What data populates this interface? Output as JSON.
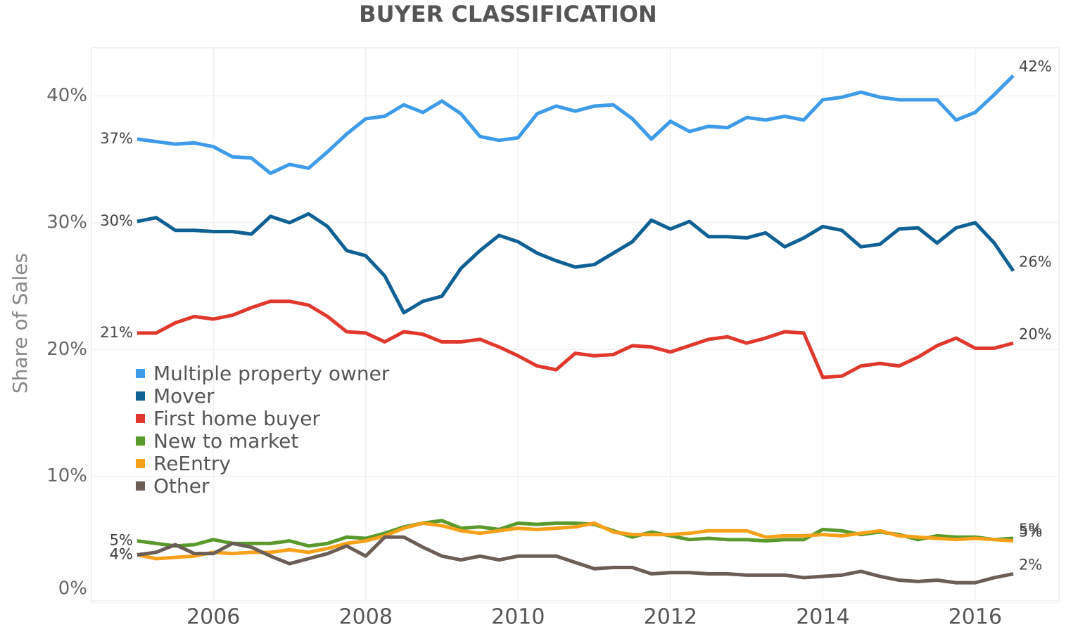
{
  "chart_data": {
    "type": "line",
    "title": "BUYER CLASSIFICATION",
    "y_label": "Share of Sales",
    "x": [
      2005,
      2005.25,
      2005.5,
      2005.75,
      2006,
      2006.25,
      2006.5,
      2006.75,
      2007,
      2007.25,
      2007.5,
      2007.75,
      2008,
      2008.25,
      2008.5,
      2008.75,
      2009,
      2009.25,
      2009.5,
      2009.75,
      2010,
      2010.25,
      2010.5,
      2010.75,
      2011,
      2011.25,
      2011.5,
      2011.75,
      2012,
      2012.25,
      2012.5,
      2012.75,
      2013,
      2013.25,
      2013.5,
      2013.75,
      2014,
      2014.25,
      2014.5,
      2014.75,
      2015,
      2015.25,
      2015.5,
      2015.75,
      2016,
      2016.25,
      2016.5
    ],
    "xlim": [
      2004.4,
      2017.1
    ],
    "xticks": [
      2006,
      2008,
      2010,
      2012,
      2014,
      2016
    ],
    "ylim": [
      0,
      43.8
    ],
    "yticks": [
      {
        "value": 0,
        "label": "0%"
      },
      {
        "value": 10,
        "label": "10%"
      },
      {
        "value": 20,
        "label": "20%"
      },
      {
        "value": 30,
        "label": "30%"
      },
      {
        "value": 40,
        "label": "40%"
      }
    ],
    "grid": true,
    "legend": "lower left",
    "series": [
      {
        "name": "Multiple property owner",
        "color": "#3d9be9",
        "values": [
          36.6,
          36.4,
          36.2,
          36.3,
          36.0,
          35.2,
          35.1,
          33.9,
          34.6,
          34.3,
          35.6,
          37.0,
          38.2,
          38.4,
          39.3,
          38.7,
          39.6,
          38.6,
          36.8,
          36.5,
          36.7,
          38.6,
          39.2,
          38.8,
          39.2,
          39.3,
          38.2,
          36.6,
          38.0,
          37.2,
          37.6,
          37.5,
          38.3,
          38.1,
          38.4,
          38.1,
          39.7,
          39.9,
          40.3,
          39.9,
          39.7,
          39.7,
          39.7,
          38.1,
          38.7,
          40.1,
          41.6
        ],
        "value_labels": [
          "37%",
          null,
          null,
          null,
          null,
          null,
          null,
          null,
          null,
          null,
          null,
          null,
          null,
          null,
          null,
          null,
          null,
          null,
          null,
          null,
          null,
          null,
          null,
          null,
          null,
          null,
          null,
          null,
          null,
          null,
          null,
          null,
          null,
          null,
          null,
          null,
          null,
          null,
          null,
          null,
          null,
          null,
          null,
          null,
          null,
          null,
          "42%"
        ]
      },
      {
        "name": "Mover",
        "color": "#0f6194",
        "values": [
          30.1,
          30.4,
          29.4,
          29.4,
          29.3,
          29.3,
          29.1,
          30.5,
          30.0,
          30.7,
          29.7,
          27.8,
          27.4,
          25.8,
          22.9,
          23.8,
          24.2,
          26.4,
          27.8,
          29.0,
          28.5,
          27.6,
          27.0,
          26.5,
          26.7,
          27.6,
          28.5,
          30.2,
          29.5,
          30.1,
          28.9,
          28.9,
          28.8,
          29.2,
          28.1,
          28.8,
          29.7,
          29.4,
          28.1,
          28.3,
          29.5,
          29.6,
          28.4,
          29.6,
          30.0,
          28.4,
          26.2
        ],
        "value_labels": [
          "30%",
          null,
          null,
          null,
          null,
          null,
          null,
          null,
          null,
          null,
          null,
          null,
          null,
          null,
          null,
          null,
          null,
          null,
          null,
          null,
          null,
          null,
          null,
          null,
          null,
          null,
          null,
          null,
          null,
          null,
          null,
          null,
          null,
          null,
          null,
          null,
          null,
          null,
          null,
          null,
          null,
          null,
          null,
          null,
          null,
          null,
          "26%"
        ]
      },
      {
        "name": "First home buyer",
        "color": "#e0382c",
        "values": [
          21.3,
          21.3,
          22.1,
          22.6,
          22.4,
          22.7,
          23.3,
          23.8,
          23.8,
          23.5,
          22.6,
          21.4,
          21.3,
          20.6,
          21.4,
          21.2,
          20.6,
          20.6,
          20.8,
          20.2,
          19.5,
          18.7,
          18.4,
          19.7,
          19.5,
          19.6,
          20.3,
          20.2,
          19.8,
          20.3,
          20.8,
          21.0,
          20.5,
          20.9,
          21.4,
          21.3,
          17.8,
          17.9,
          18.7,
          18.9,
          18.7,
          19.4,
          20.3,
          20.9,
          20.1,
          20.1,
          20.5
        ],
        "value_labels": [
          "21%",
          null,
          null,
          null,
          null,
          null,
          null,
          null,
          null,
          null,
          null,
          null,
          null,
          null,
          null,
          null,
          null,
          null,
          null,
          null,
          null,
          null,
          null,
          null,
          null,
          null,
          null,
          null,
          null,
          null,
          null,
          null,
          null,
          null,
          null,
          null,
          null,
          null,
          null,
          null,
          null,
          null,
          null,
          null,
          null,
          null,
          "20%"
        ]
      },
      {
        "name": "New to market",
        "color": "#5a9a2c",
        "values": [
          4.9,
          4.7,
          4.5,
          4.6,
          5.0,
          4.7,
          4.7,
          4.7,
          4.9,
          4.5,
          4.7,
          5.2,
          5.1,
          5.5,
          6.0,
          6.3,
          6.5,
          5.9,
          6.0,
          5.8,
          6.3,
          6.2,
          6.3,
          6.3,
          6.2,
          5.7,
          5.2,
          5.6,
          5.3,
          5.0,
          5.1,
          5.0,
          5.0,
          4.9,
          5.0,
          5.0,
          5.8,
          5.7,
          5.4,
          5.6,
          5.4,
          5.0,
          5.3,
          5.2,
          5.2,
          5.0,
          5.1
        ],
        "value_labels": [
          "5%",
          null,
          null,
          null,
          null,
          null,
          null,
          null,
          null,
          null,
          null,
          null,
          null,
          null,
          null,
          null,
          null,
          null,
          null,
          null,
          null,
          null,
          null,
          null,
          null,
          null,
          null,
          null,
          null,
          null,
          null,
          null,
          null,
          null,
          null,
          null,
          null,
          null,
          null,
          null,
          null,
          null,
          null,
          null,
          null,
          null,
          "5%"
        ]
      },
      {
        "name": "ReEntry",
        "color": "#f7a11a",
        "values": [
          3.8,
          3.5,
          3.6,
          3.7,
          4.0,
          3.9,
          4.0,
          4.0,
          4.2,
          4.0,
          4.3,
          4.7,
          4.9,
          5.3,
          5.9,
          6.3,
          6.1,
          5.7,
          5.5,
          5.7,
          5.9,
          5.8,
          5.9,
          6.0,
          6.3,
          5.6,
          5.4,
          5.4,
          5.4,
          5.5,
          5.7,
          5.7,
          5.7,
          5.2,
          5.3,
          5.3,
          5.4,
          5.3,
          5.5,
          5.7,
          5.3,
          5.2,
          5.1,
          5.0,
          5.1,
          5.0,
          4.9
        ],
        "value_labels": [
          "4%",
          null,
          null,
          null,
          null,
          null,
          null,
          null,
          null,
          null,
          null,
          null,
          null,
          null,
          null,
          null,
          null,
          null,
          null,
          null,
          null,
          null,
          null,
          null,
          null,
          null,
          null,
          null,
          null,
          null,
          null,
          null,
          null,
          null,
          null,
          null,
          null,
          null,
          null,
          null,
          null,
          null,
          null,
          null,
          null,
          null,
          "5%"
        ]
      },
      {
        "name": "Other",
        "color": "#6b5e57",
        "values": [
          3.8,
          4.0,
          4.6,
          3.9,
          3.9,
          4.7,
          4.4,
          3.7,
          3.1,
          3.5,
          3.9,
          4.5,
          3.7,
          5.2,
          5.2,
          4.4,
          3.7,
          3.4,
          3.7,
          3.4,
          3.7,
          3.7,
          3.7,
          3.2,
          2.7,
          2.8,
          2.8,
          2.3,
          2.4,
          2.4,
          2.3,
          2.3,
          2.2,
          2.2,
          2.2,
          2.0,
          2.1,
          2.2,
          2.5,
          2.1,
          1.8,
          1.7,
          1.8,
          1.6,
          1.6,
          2.0,
          2.3
        ],
        "value_labels": [
          "4%",
          null,
          null,
          null,
          null,
          null,
          null,
          null,
          null,
          null,
          null,
          null,
          null,
          null,
          null,
          null,
          null,
          null,
          null,
          null,
          null,
          null,
          null,
          null,
          null,
          null,
          null,
          null,
          null,
          null,
          null,
          null,
          null,
          null,
          null,
          null,
          null,
          null,
          null,
          null,
          null,
          null,
          null,
          null,
          null,
          null,
          "2%"
        ]
      }
    ]
  }
}
